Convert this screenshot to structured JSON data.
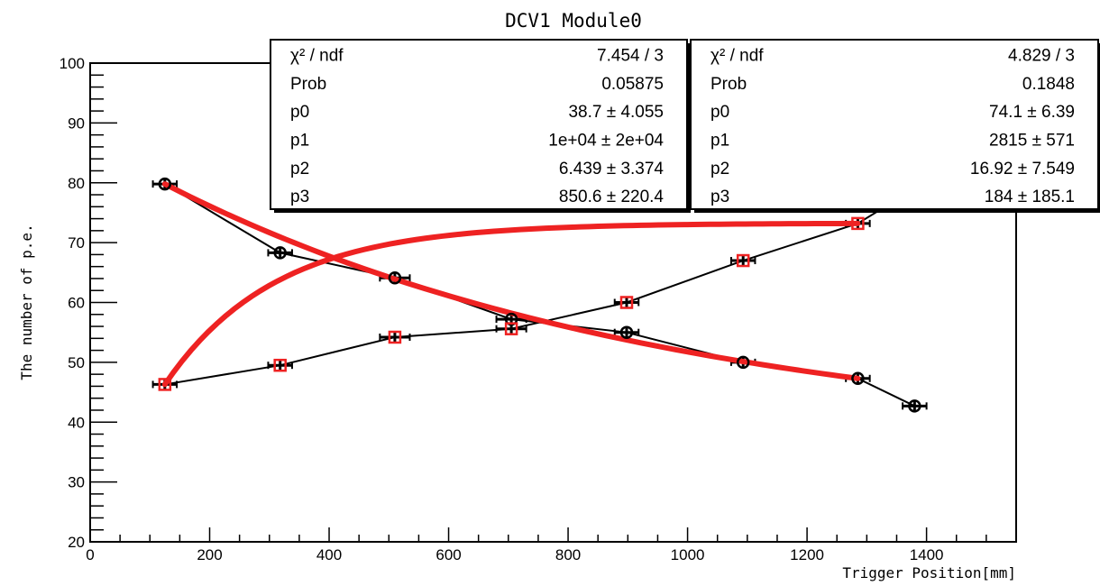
{
  "chart_data": {
    "type": "scatter",
    "title": "DCV1 Module0",
    "xlabel": "Trigger Position[mm]",
    "ylabel": "The number of p.e.",
    "xlim": [
      0,
      1550
    ],
    "ylim": [
      20,
      100
    ],
    "x_ticks": [
      0,
      200,
      400,
      600,
      800,
      1000,
      1200,
      1400
    ],
    "y_ticks": [
      20,
      30,
      40,
      50,
      60,
      70,
      80,
      90,
      100
    ],
    "grid": false,
    "series": [
      {
        "marker": "open-circle",
        "color": "#000000",
        "x": [
          125,
          318,
          510,
          705,
          898,
          1093,
          1285,
          1380
        ],
        "y": [
          79.8,
          68.3,
          64.1,
          57.2,
          55.0,
          50.0,
          47.3,
          42.7
        ],
        "x_err": [
          20,
          20,
          25,
          25,
          20,
          20,
          20,
          20
        ],
        "y_err": [
          1.0,
          0.8,
          0.8,
          0.8,
          0.8,
          0.8,
          0.8,
          0.8
        ],
        "fit": {
          "color": "#ee2222",
          "x_range": [
            125,
            1285
          ],
          "p0": 38.7,
          "p1": 10000,
          "p2": 6.439,
          "p3": 850.6
        }
      },
      {
        "marker": "open-square",
        "color": "#ee2222",
        "x": [
          125,
          318,
          510,
          705,
          898,
          1093,
          1285,
          1380
        ],
        "y": [
          46.3,
          49.5,
          54.2,
          55.6,
          60.0,
          67.0,
          73.2,
          79.0
        ],
        "x_err": [
          20,
          20,
          25,
          25,
          20,
          20,
          20,
          20
        ],
        "y_err": [
          0.8,
          0.8,
          0.8,
          0.8,
          0.8,
          0.8,
          0.8,
          0.8
        ],
        "fit": {
          "color": "#ee2222",
          "x_range": [
            125,
            1285
          ],
          "p0": 74.1,
          "p1": 2815,
          "p2": 16.92,
          "p3": 184
        }
      }
    ],
    "stats_boxes": [
      {
        "rows": [
          {
            "label": "χ² / ndf",
            "value": "7.454 / 3"
          },
          {
            "label": "Prob",
            "value": "0.05875"
          },
          {
            "label": "p0",
            "value": "38.7 ± 4.055"
          },
          {
            "label": "p1",
            "value": "1e+04 ± 2e+04"
          },
          {
            "label": "p2",
            "value": "6.439 ± 3.374"
          },
          {
            "label": "p3",
            "value": "850.6 ± 220.4"
          }
        ]
      },
      {
        "rows": [
          {
            "label": "χ² / ndf",
            "value": "4.829 / 3"
          },
          {
            "label": "Prob",
            "value": "0.1848"
          },
          {
            "label": "p0",
            "value": "74.1 ±  6.39"
          },
          {
            "label": "p1",
            "value": "2815 ±   571"
          },
          {
            "label": "p2",
            "value": "16.92 ± 7.549"
          },
          {
            "label": "p3",
            "value": "184 ± 185.1"
          }
        ]
      }
    ]
  }
}
